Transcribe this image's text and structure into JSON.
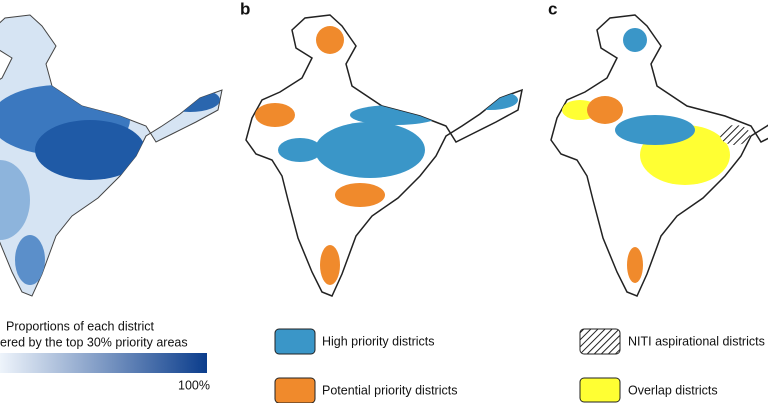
{
  "panel_labels": [
    "b",
    "c"
  ],
  "legend_a": {
    "title_lines": [
      "Proportions of each district",
      "ered by the top 30% priority areas"
    ],
    "max_label": "100%"
  },
  "legend_b": [
    "High priority districts",
    "Potential priority districts"
  ],
  "legend_c": [
    "NITI aspirational districts",
    "Overlap districts"
  ]
}
